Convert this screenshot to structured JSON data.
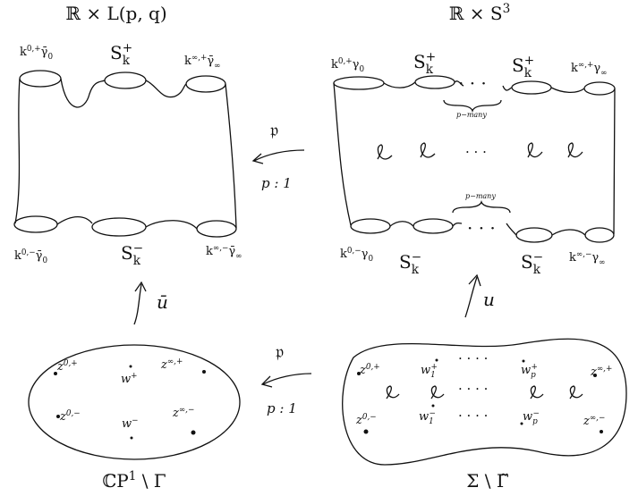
{
  "upper_left": {
    "title": [
      {
        "text": "ℝ × L(p, q)"
      }
    ],
    "labels": [
      [
        {
          "text": "k"
        },
        {
          "sup": "0,+"
        },
        {
          "text": "γ̄"
        },
        {
          "sub": "0"
        }
      ],
      [
        {
          "text": "S"
        },
        {
          "sub": "k"
        },
        {
          "sup": "+"
        }
      ],
      [
        {
          "text": "k"
        },
        {
          "sup": "∞,+"
        },
        {
          "text": "γ̄"
        },
        {
          "sub": "∞"
        }
      ],
      [
        {
          "text": "k"
        },
        {
          "sup": "0,−"
        },
        {
          "text": "γ̄"
        },
        {
          "sub": "0"
        }
      ],
      [
        {
          "text": "S"
        },
        {
          "sub": "k"
        },
        {
          "sup": "−"
        }
      ],
      [
        {
          "text": "k"
        },
        {
          "sup": "∞,−"
        },
        {
          "text": "γ̄"
        },
        {
          "sub": "∞"
        }
      ]
    ]
  },
  "upper_right": {
    "title": [
      {
        "text": "ℝ × S"
      },
      {
        "sup": "3"
      }
    ],
    "labels": [
      [
        {
          "text": "k"
        },
        {
          "sup": "0,+"
        },
        {
          "text": "γ"
        },
        {
          "sub": "0"
        }
      ],
      [
        {
          "text": "S"
        },
        {
          "sub": "k"
        },
        {
          "sup": "+"
        }
      ],
      [
        {
          "text": "· · ·"
        }
      ],
      [
        {
          "text": "S"
        },
        {
          "sub": "k"
        },
        {
          "sup": "+"
        }
      ],
      [
        {
          "text": "k"
        },
        {
          "sup": "∞,+"
        },
        {
          "text": "γ"
        },
        {
          "sub": "∞"
        }
      ],
      [
        {
          "text": "p−many"
        }
      ],
      [
        {
          "text": "·  ·  ·"
        }
      ],
      [
        {
          "text": "p−many"
        }
      ],
      [
        {
          "text": "k"
        },
        {
          "sup": "0,−"
        },
        {
          "text": "γ"
        },
        {
          "sub": "0"
        }
      ],
      [
        {
          "text": "S"
        },
        {
          "sub": "k"
        },
        {
          "sup": "−"
        }
      ],
      [
        {
          "text": "· · ·"
        }
      ],
      [
        {
          "text": "S"
        },
        {
          "sub": "k"
        },
        {
          "sup": "−"
        }
      ],
      [
        {
          "text": "k"
        },
        {
          "sup": "∞,−"
        },
        {
          "text": "γ"
        },
        {
          "sub": "∞"
        }
      ]
    ]
  },
  "maps": {
    "upper_symbol": [
      {
        "text": "𝔭"
      }
    ],
    "upper_ratio": [
      {
        "text": "p : 1"
      }
    ],
    "left_map": [
      {
        "text": "ū"
      }
    ],
    "right_map": [
      {
        "text": "u"
      }
    ],
    "lower_symbol": [
      {
        "text": "𝔭"
      }
    ],
    "lower_ratio": [
      {
        "text": "p : 1"
      }
    ]
  },
  "lower_left": {
    "caption": [
      {
        "text": "ℂP"
      },
      {
        "sup": "1"
      },
      {
        "text": " \\ Γ"
      }
    ],
    "labels": [
      [
        {
          "text": "z"
        },
        {
          "sup": "0,+"
        }
      ],
      [
        {
          "text": "w"
        },
        {
          "sup": "+"
        }
      ],
      [
        {
          "text": "z"
        },
        {
          "sup": "∞,+"
        }
      ],
      [
        {
          "text": "z"
        },
        {
          "sup": "0,−"
        }
      ],
      [
        {
          "text": "w"
        },
        {
          "sup": "−"
        }
      ],
      [
        {
          "text": "z"
        },
        {
          "sup": "∞,−"
        }
      ]
    ]
  },
  "lower_right": {
    "caption": [
      {
        "text": "Σ \\ Γ̃"
      }
    ],
    "labels": [
      [
        {
          "text": "z"
        },
        {
          "sup": "0,+"
        }
      ],
      [
        {
          "text": "w"
        },
        {
          "sub": "1"
        },
        {
          "sup": "+"
        }
      ],
      [
        {
          "text": "· · · ·"
        }
      ],
      [
        {
          "text": "w"
        },
        {
          "sub": "p"
        },
        {
          "sup": "+"
        }
      ],
      [
        {
          "text": "z"
        },
        {
          "sup": "∞,+"
        }
      ],
      [
        {
          "text": "· · · ·"
        }
      ],
      [
        {
          "text": "z"
        },
        {
          "sup": "0,−"
        }
      ],
      [
        {
          "text": "w"
        },
        {
          "sub": "1"
        },
        {
          "sup": "−"
        }
      ],
      [
        {
          "text": "· · · ·"
        }
      ],
      [
        {
          "text": "w"
        },
        {
          "sub": "p"
        },
        {
          "sup": "−"
        }
      ],
      [
        {
          "text": "z"
        },
        {
          "sup": "∞,−"
        }
      ]
    ]
  }
}
